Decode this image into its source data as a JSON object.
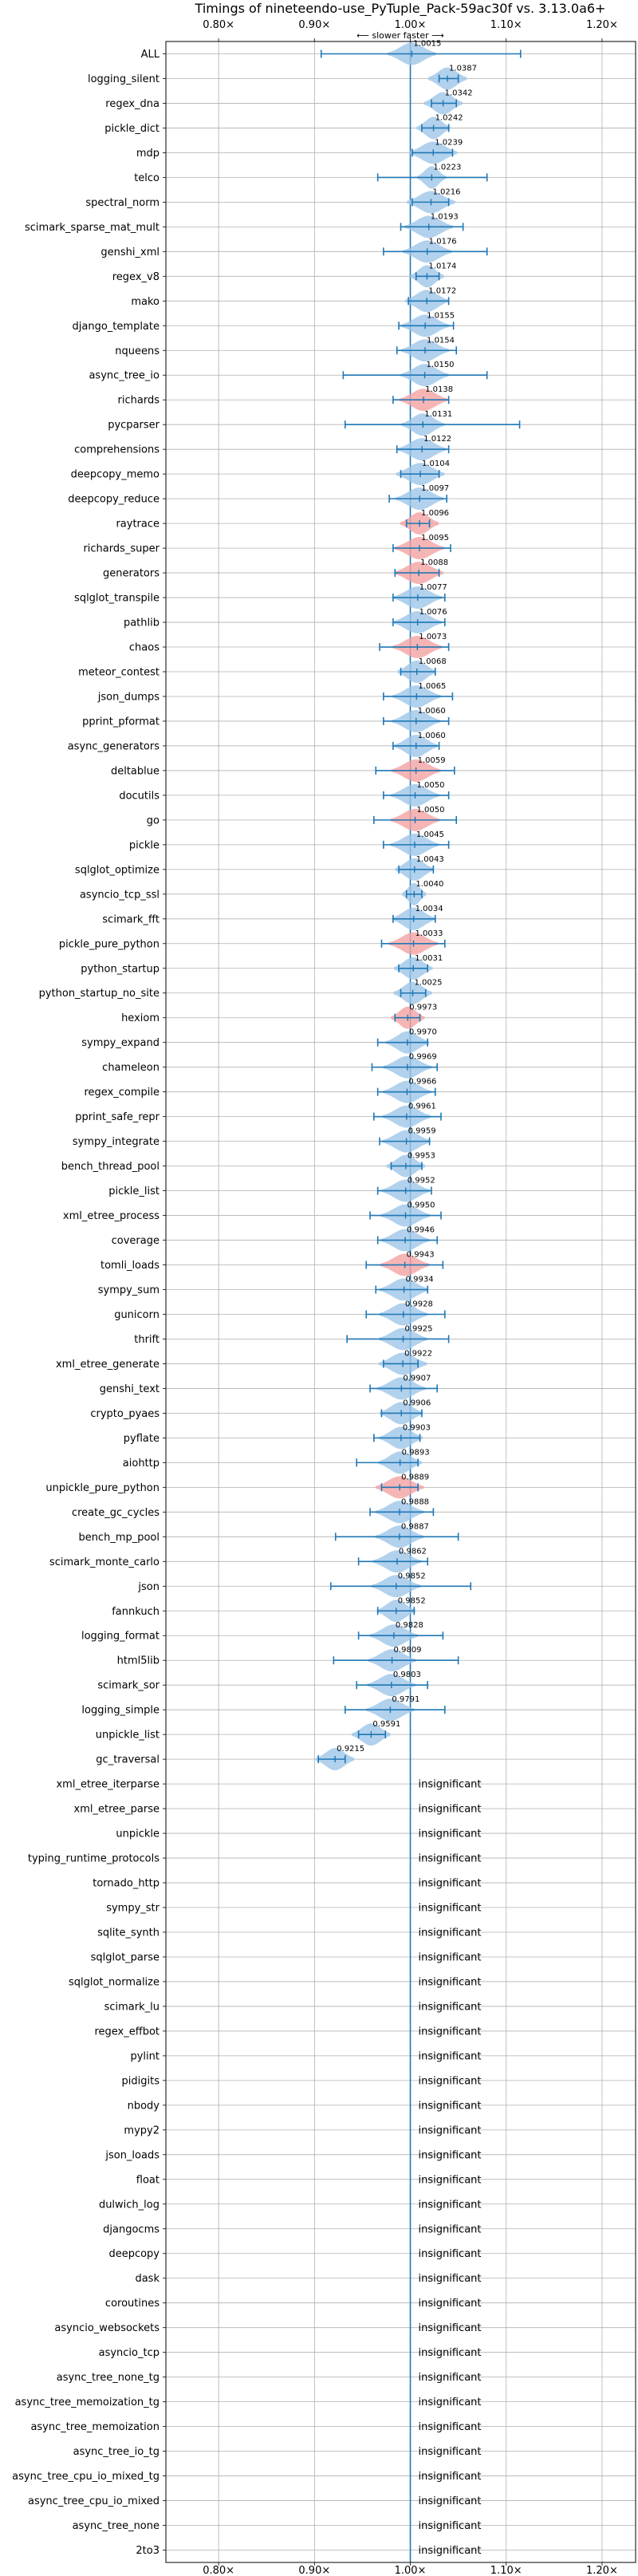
{
  "chart_data": {
    "type": "violin",
    "title": "Timings of nineteendo-use_PyTuple_Pack-59ac30f vs. 3.13.0a6+",
    "direction_label": "⟵ slower    faster ⟶",
    "xlim": [
      0.745,
      1.235
    ],
    "x_ticks": [
      0.8,
      0.9,
      1.0,
      1.1,
      1.2
    ],
    "x_tick_labels": [
      "0.80×",
      "0.90×",
      "1.00×",
      "1.10×",
      "1.20×"
    ],
    "insignificant_label": "insignificant",
    "colors": {
      "faster": "#9ec6e8",
      "slower": "#f4a3a3",
      "line": "#1f77b4",
      "grid": "#b0b0b0"
    },
    "benchmarks": [
      {
        "name": "ALL",
        "value": 1.0015,
        "label": "1.0015",
        "lo": 0.907,
        "hi": 1.115,
        "width": 0.02,
        "slower": false
      },
      {
        "name": "logging_silent",
        "value": 1.0387,
        "label": "1.0387",
        "lo": 1.03,
        "hi": 1.05,
        "width": 0.016,
        "slower": false
      },
      {
        "name": "regex_dna",
        "value": 1.0342,
        "label": "1.0342",
        "lo": 1.022,
        "hi": 1.048,
        "width": 0.016,
        "slower": false
      },
      {
        "name": "pickle_dict",
        "value": 1.0242,
        "label": "1.0242",
        "lo": 1.012,
        "hi": 1.04,
        "width": 0.014,
        "slower": false
      },
      {
        "name": "mdp",
        "value": 1.0239,
        "label": "1.0239",
        "lo": 1.002,
        "hi": 1.044,
        "width": 0.02,
        "slower": false
      },
      {
        "name": "telco",
        "value": 1.0223,
        "label": "1.0223",
        "lo": 0.966,
        "hi": 1.08,
        "width": 0.012,
        "slower": false
      },
      {
        "name": "spectral_norm",
        "value": 1.0216,
        "label": "1.0216",
        "lo": 1.002,
        "hi": 1.04,
        "width": 0.02,
        "slower": false
      },
      {
        "name": "scimark_sparse_mat_mult",
        "value": 1.0193,
        "label": "1.0193",
        "lo": 0.99,
        "hi": 1.055,
        "width": 0.02,
        "slower": false
      },
      {
        "name": "genshi_xml",
        "value": 1.0176,
        "label": "1.0176",
        "lo": 0.972,
        "hi": 1.08,
        "width": 0.024,
        "slower": false
      },
      {
        "name": "regex_v8",
        "value": 1.0174,
        "label": "1.0174",
        "lo": 1.006,
        "hi": 1.03,
        "width": 0.014,
        "slower": false
      },
      {
        "name": "mako",
        "value": 1.0172,
        "label": "1.0172",
        "lo": 0.998,
        "hi": 1.04,
        "width": 0.018,
        "slower": false
      },
      {
        "name": "django_template",
        "value": 1.0155,
        "label": "1.0155",
        "lo": 0.988,
        "hi": 1.045,
        "width": 0.02,
        "slower": false
      },
      {
        "name": "nqueens",
        "value": 1.0154,
        "label": "1.0154",
        "lo": 0.986,
        "hi": 1.048,
        "width": 0.02,
        "slower": false
      },
      {
        "name": "async_tree_io",
        "value": 1.015,
        "label": "1.0150",
        "lo": 0.93,
        "hi": 1.08,
        "width": 0.02,
        "slower": false
      },
      {
        "name": "richards",
        "value": 1.0138,
        "label": "1.0138",
        "lo": 0.982,
        "hi": 1.04,
        "width": 0.02,
        "slower": true
      },
      {
        "name": "pycparser",
        "value": 1.0131,
        "label": "1.0131",
        "lo": 0.932,
        "hi": 1.114,
        "width": 0.018,
        "slower": false
      },
      {
        "name": "comprehensions",
        "value": 1.0122,
        "label": "1.0122",
        "lo": 0.986,
        "hi": 1.04,
        "width": 0.02,
        "slower": false
      },
      {
        "name": "deepcopy_memo",
        "value": 1.0104,
        "label": "1.0104",
        "lo": 0.99,
        "hi": 1.03,
        "width": 0.02,
        "slower": false
      },
      {
        "name": "deepcopy_reduce",
        "value": 1.0097,
        "label": "1.0097",
        "lo": 0.978,
        "hi": 1.038,
        "width": 0.02,
        "slower": false
      },
      {
        "name": "raytrace",
        "value": 1.0096,
        "label": "1.0096",
        "lo": 0.996,
        "hi": 1.02,
        "width": 0.016,
        "slower": true
      },
      {
        "name": "richards_super",
        "value": 1.0095,
        "label": "1.0095",
        "lo": 0.982,
        "hi": 1.042,
        "width": 0.022,
        "slower": true
      },
      {
        "name": "generators",
        "value": 1.0088,
        "label": "1.0088",
        "lo": 0.984,
        "hi": 1.03,
        "width": 0.022,
        "slower": true
      },
      {
        "name": "sqlglot_transpile",
        "value": 1.0077,
        "label": "1.0077",
        "lo": 0.982,
        "hi": 1.036,
        "width": 0.02,
        "slower": false
      },
      {
        "name": "pathlib",
        "value": 1.0076,
        "label": "1.0076",
        "lo": 0.982,
        "hi": 1.036,
        "width": 0.02,
        "slower": false
      },
      {
        "name": "chaos",
        "value": 1.0073,
        "label": "1.0073",
        "lo": 0.968,
        "hi": 1.04,
        "width": 0.024,
        "slower": true
      },
      {
        "name": "meteor_contest",
        "value": 1.0068,
        "label": "1.0068",
        "lo": 0.99,
        "hi": 1.026,
        "width": 0.016,
        "slower": false
      },
      {
        "name": "json_dumps",
        "value": 1.0065,
        "label": "1.0065",
        "lo": 0.972,
        "hi": 1.044,
        "width": 0.02,
        "slower": false
      },
      {
        "name": "pprint_pformat",
        "value": 1.006,
        "label": "1.0060",
        "lo": 0.972,
        "hi": 1.04,
        "width": 0.02,
        "slower": false
      },
      {
        "name": "async_generators",
        "value": 1.006,
        "label": "1.0060",
        "lo": 0.982,
        "hi": 1.03,
        "width": 0.018,
        "slower": false
      },
      {
        "name": "deltablue",
        "value": 1.0059,
        "label": "1.0059",
        "lo": 0.964,
        "hi": 1.046,
        "width": 0.024,
        "slower": true
      },
      {
        "name": "docutils",
        "value": 1.005,
        "label": "1.0050",
        "lo": 0.972,
        "hi": 1.04,
        "width": 0.02,
        "slower": false
      },
      {
        "name": "go",
        "value": 1.005,
        "label": "1.0050",
        "lo": 0.962,
        "hi": 1.048,
        "width": 0.024,
        "slower": true
      },
      {
        "name": "pickle",
        "value": 1.0045,
        "label": "1.0045",
        "lo": 0.972,
        "hi": 1.04,
        "width": 0.02,
        "slower": false
      },
      {
        "name": "sqlglot_optimize",
        "value": 1.0043,
        "label": "1.0043",
        "lo": 0.988,
        "hi": 1.024,
        "width": 0.016,
        "slower": false
      },
      {
        "name": "asyncio_tcp_ssl",
        "value": 1.004,
        "label": "1.0040",
        "lo": 0.996,
        "hi": 1.012,
        "width": 0.01,
        "slower": false
      },
      {
        "name": "scimark_fft",
        "value": 1.0034,
        "label": "1.0034",
        "lo": 0.982,
        "hi": 1.026,
        "width": 0.018,
        "slower": false
      },
      {
        "name": "pickle_pure_python",
        "value": 1.0033,
        "label": "1.0033",
        "lo": 0.97,
        "hi": 1.036,
        "width": 0.024,
        "slower": true
      },
      {
        "name": "python_startup",
        "value": 1.0031,
        "label": "1.0031",
        "lo": 0.988,
        "hi": 1.018,
        "width": 0.016,
        "slower": false
      },
      {
        "name": "python_startup_no_site",
        "value": 1.0025,
        "label": "1.0025",
        "lo": 0.99,
        "hi": 1.016,
        "width": 0.016,
        "slower": false
      },
      {
        "name": "hexiom",
        "value": 0.9973,
        "label": "0.9973",
        "lo": 0.984,
        "hi": 1.01,
        "width": 0.014,
        "slower": true
      },
      {
        "name": "sympy_expand",
        "value": 0.997,
        "label": "0.9970",
        "lo": 0.966,
        "hi": 1.018,
        "width": 0.018,
        "slower": false
      },
      {
        "name": "chameleon",
        "value": 0.9969,
        "label": "0.9969",
        "lo": 0.96,
        "hi": 1.028,
        "width": 0.02,
        "slower": false
      },
      {
        "name": "regex_compile",
        "value": 0.9966,
        "label": "0.9966",
        "lo": 0.966,
        "hi": 1.026,
        "width": 0.02,
        "slower": false
      },
      {
        "name": "pprint_safe_repr",
        "value": 0.9961,
        "label": "0.9961",
        "lo": 0.962,
        "hi": 1.032,
        "width": 0.02,
        "slower": false
      },
      {
        "name": "sympy_integrate",
        "value": 0.9959,
        "label": "0.9959",
        "lo": 0.968,
        "hi": 1.02,
        "width": 0.02,
        "slower": false
      },
      {
        "name": "bench_thread_pool",
        "value": 0.9953,
        "label": "0.9953",
        "lo": 0.98,
        "hi": 1.012,
        "width": 0.016,
        "slower": false
      },
      {
        "name": "pickle_list",
        "value": 0.9952,
        "label": "0.9952",
        "lo": 0.966,
        "hi": 1.022,
        "width": 0.02,
        "slower": false
      },
      {
        "name": "xml_etree_process",
        "value": 0.995,
        "label": "0.9950",
        "lo": 0.958,
        "hi": 1.032,
        "width": 0.022,
        "slower": false
      },
      {
        "name": "coverage",
        "value": 0.9946,
        "label": "0.9946",
        "lo": 0.966,
        "hi": 1.028,
        "width": 0.02,
        "slower": false
      },
      {
        "name": "tomli_loads",
        "value": 0.9943,
        "label": "0.9943",
        "lo": 0.954,
        "hi": 1.034,
        "width": 0.03,
        "slower": true
      },
      {
        "name": "sympy_sum",
        "value": 0.9934,
        "label": "0.9934",
        "lo": 0.964,
        "hi": 1.018,
        "width": 0.022,
        "slower": false
      },
      {
        "name": "gunicorn",
        "value": 0.9928,
        "label": "0.9928",
        "lo": 0.954,
        "hi": 1.036,
        "width": 0.02,
        "slower": false
      },
      {
        "name": "thrift",
        "value": 0.9925,
        "label": "0.9925",
        "lo": 0.934,
        "hi": 1.04,
        "width": 0.02,
        "slower": false
      },
      {
        "name": "xml_etree_generate",
        "value": 0.9922,
        "label": "0.9922",
        "lo": 0.972,
        "hi": 1.008,
        "width": 0.02,
        "slower": false
      },
      {
        "name": "genshi_text",
        "value": 0.9907,
        "label": "0.9907",
        "lo": 0.958,
        "hi": 1.028,
        "width": 0.02,
        "slower": false
      },
      {
        "name": "crypto_pyaes",
        "value": 0.9906,
        "label": "0.9906",
        "lo": 0.97,
        "hi": 1.012,
        "width": 0.018,
        "slower": false
      },
      {
        "name": "pyflate",
        "value": 0.9903,
        "label": "0.9903",
        "lo": 0.962,
        "hi": 1.01,
        "width": 0.018,
        "slower": false
      },
      {
        "name": "aiohttp",
        "value": 0.9893,
        "label": "0.9893",
        "lo": 0.944,
        "hi": 1.008,
        "width": 0.018,
        "slower": false
      },
      {
        "name": "unpickle_pure_python",
        "value": 0.9889,
        "label": "0.9889",
        "lo": 0.97,
        "hi": 1.008,
        "width": 0.02,
        "slower": true
      },
      {
        "name": "create_gc_cycles",
        "value": 0.9888,
        "label": "0.9888",
        "lo": 0.958,
        "hi": 1.024,
        "width": 0.02,
        "slower": false
      },
      {
        "name": "bench_mp_pool",
        "value": 0.9887,
        "label": "0.9887",
        "lo": 0.922,
        "hi": 1.05,
        "width": 0.02,
        "slower": false
      },
      {
        "name": "scimark_monte_carlo",
        "value": 0.9862,
        "label": "0.9862",
        "lo": 0.946,
        "hi": 1.018,
        "width": 0.02,
        "slower": false
      },
      {
        "name": "json",
        "value": 0.9852,
        "label": "0.9852",
        "lo": 0.917,
        "hi": 1.063,
        "width": 0.022,
        "slower": false
      },
      {
        "name": "fannkuch",
        "value": 0.9852,
        "label": "0.9852",
        "lo": 0.966,
        "hi": 1.004,
        "width": 0.016,
        "slower": false
      },
      {
        "name": "logging_format",
        "value": 0.9828,
        "label": "0.9828",
        "lo": 0.946,
        "hi": 1.034,
        "width": 0.02,
        "slower": false
      },
      {
        "name": "html5lib",
        "value": 0.9809,
        "label": "0.9809",
        "lo": 0.92,
        "hi": 1.05,
        "width": 0.02,
        "slower": false
      },
      {
        "name": "scimark_sor",
        "value": 0.9803,
        "label": "0.9803",
        "lo": 0.944,
        "hi": 1.018,
        "width": 0.02,
        "slower": false
      },
      {
        "name": "logging_simple",
        "value": 0.9791,
        "label": "0.9791",
        "lo": 0.932,
        "hi": 1.036,
        "width": 0.02,
        "slower": false
      },
      {
        "name": "unpickle_list",
        "value": 0.9591,
        "label": "0.9591",
        "lo": 0.946,
        "hi": 0.974,
        "width": 0.016,
        "slower": false
      },
      {
        "name": "gc_traversal",
        "value": 0.9215,
        "label": "0.9215",
        "lo": 0.904,
        "hi": 0.932,
        "width": 0.016,
        "slower": false
      },
      {
        "name": "xml_etree_iterparse",
        "value": null
      },
      {
        "name": "xml_etree_parse",
        "value": null
      },
      {
        "name": "unpickle",
        "value": null
      },
      {
        "name": "typing_runtime_protocols",
        "value": null
      },
      {
        "name": "tornado_http",
        "value": null
      },
      {
        "name": "sympy_str",
        "value": null
      },
      {
        "name": "sqlite_synth",
        "value": null
      },
      {
        "name": "sqlglot_parse",
        "value": null
      },
      {
        "name": "sqlglot_normalize",
        "value": null
      },
      {
        "name": "scimark_lu",
        "value": null
      },
      {
        "name": "regex_effbot",
        "value": null
      },
      {
        "name": "pylint",
        "value": null
      },
      {
        "name": "pidigits",
        "value": null
      },
      {
        "name": "nbody",
        "value": null
      },
      {
        "name": "mypy2",
        "value": null
      },
      {
        "name": "json_loads",
        "value": null
      },
      {
        "name": "float",
        "value": null
      },
      {
        "name": "dulwich_log",
        "value": null
      },
      {
        "name": "djangocms",
        "value": null
      },
      {
        "name": "deepcopy",
        "value": null
      },
      {
        "name": "dask",
        "value": null
      },
      {
        "name": "coroutines",
        "value": null
      },
      {
        "name": "asyncio_websockets",
        "value": null
      },
      {
        "name": "asyncio_tcp",
        "value": null
      },
      {
        "name": "async_tree_none_tg",
        "value": null
      },
      {
        "name": "async_tree_memoization_tg",
        "value": null
      },
      {
        "name": "async_tree_memoization",
        "value": null
      },
      {
        "name": "async_tree_io_tg",
        "value": null
      },
      {
        "name": "async_tree_cpu_io_mixed_tg",
        "value": null
      },
      {
        "name": "async_tree_cpu_io_mixed",
        "value": null
      },
      {
        "name": "async_tree_none",
        "value": null
      },
      {
        "name": "2to3",
        "value": null
      }
    ]
  }
}
